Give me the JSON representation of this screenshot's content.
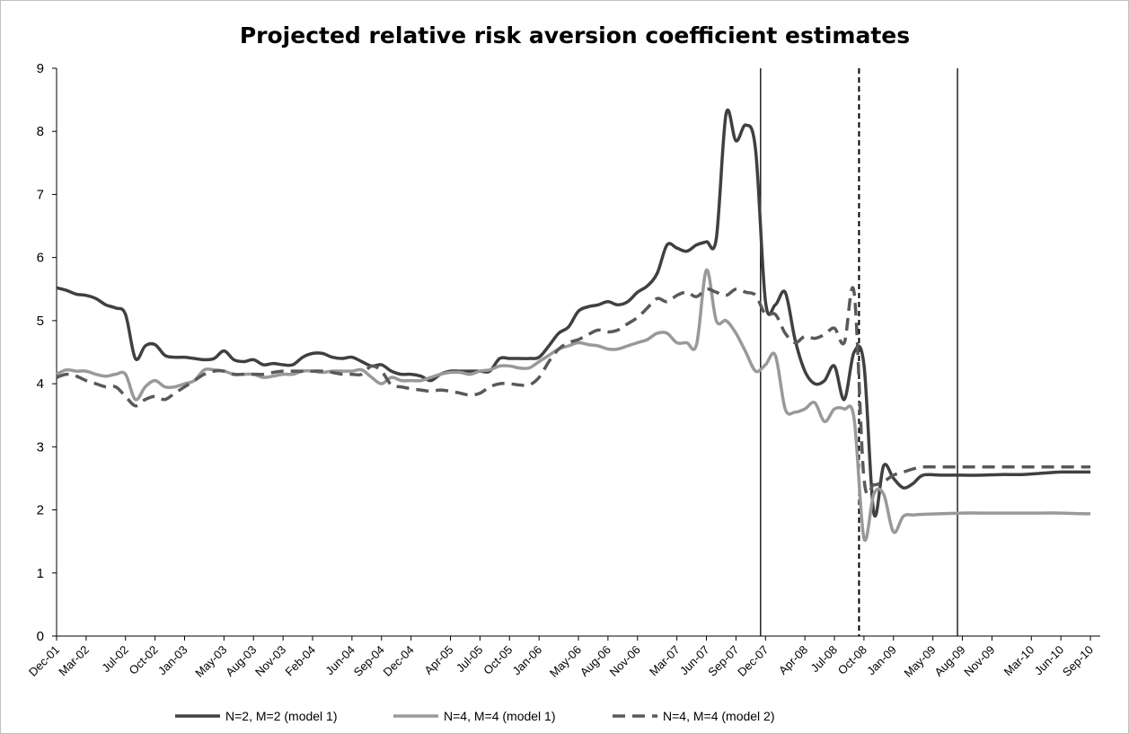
{
  "chart_data": {
    "type": "line",
    "title": "Projected relative risk aversion coefficient estimates",
    "xlabel": "",
    "ylabel": "",
    "ylim": [
      0,
      9
    ],
    "yticks": [
      0,
      1,
      2,
      3,
      4,
      5,
      6,
      7,
      8,
      9
    ],
    "x_tick_labels": [
      "Dec-01",
      "Mar-02",
      "Jul-02",
      "Oct-02",
      "Jan-03",
      "May-03",
      "Aug-03",
      "Nov-03",
      "Feb-04",
      "Jun-04",
      "Sep-04",
      "Dec-04",
      "Apr-05",
      "Jul-05",
      "Oct-05",
      "Jan-06",
      "May-06",
      "Aug-06",
      "Nov-06",
      "Mar-07",
      "Jun-07",
      "Sep-07",
      "Dec-07",
      "Apr-08",
      "Jul-08",
      "Oct-08",
      "Jan-09",
      "May-09",
      "Aug-09",
      "Nov-09",
      "Mar-10",
      "Jun-10",
      "Sep-10"
    ],
    "x_tick_positions": [
      0,
      3,
      7,
      10,
      13,
      17,
      20,
      23,
      26,
      30,
      33,
      36,
      40,
      43,
      46,
      49,
      53,
      56,
      59,
      63,
      66,
      69,
      72,
      76,
      79,
      82,
      85,
      89,
      92,
      95,
      99,
      102,
      105
    ],
    "x_range": [
      0,
      106
    ],
    "vertical_lines": [
      {
        "x": 71.5,
        "style": "solid"
      },
      {
        "x": 81.5,
        "style": "dashed"
      },
      {
        "x": 91.5,
        "style": "solid"
      }
    ],
    "grid": false,
    "legend_position": "bottom",
    "series": [
      {
        "name": "N=2, M=2 (model 1)",
        "color": "#404040",
        "dash": "solid",
        "points": [
          [
            0,
            5.52
          ],
          [
            1,
            5.48
          ],
          [
            2,
            5.42
          ],
          [
            3,
            5.4
          ],
          [
            4,
            5.35
          ],
          [
            5,
            5.25
          ],
          [
            6,
            5.2
          ],
          [
            7,
            5.1
          ],
          [
            8,
            4.4
          ],
          [
            9,
            4.6
          ],
          [
            10,
            4.62
          ],
          [
            11,
            4.45
          ],
          [
            12,
            4.42
          ],
          [
            13,
            4.42
          ],
          [
            14,
            4.4
          ],
          [
            15,
            4.38
          ],
          [
            16,
            4.4
          ],
          [
            17,
            4.52
          ],
          [
            18,
            4.38
          ],
          [
            19,
            4.35
          ],
          [
            20,
            4.38
          ],
          [
            21,
            4.3
          ],
          [
            22,
            4.32
          ],
          [
            23,
            4.3
          ],
          [
            24,
            4.3
          ],
          [
            25,
            4.42
          ],
          [
            26,
            4.48
          ],
          [
            27,
            4.48
          ],
          [
            28,
            4.42
          ],
          [
            29,
            4.4
          ],
          [
            30,
            4.42
          ],
          [
            31,
            4.35
          ],
          [
            32,
            4.28
          ],
          [
            33,
            4.3
          ],
          [
            34,
            4.2
          ],
          [
            35,
            4.15
          ],
          [
            36,
            4.15
          ],
          [
            37,
            4.12
          ],
          [
            38,
            4.05
          ],
          [
            39,
            4.15
          ],
          [
            40,
            4.2
          ],
          [
            41,
            4.2
          ],
          [
            42,
            4.2
          ],
          [
            43,
            4.2
          ],
          [
            44,
            4.2
          ],
          [
            45,
            4.4
          ],
          [
            46,
            4.4
          ],
          [
            47,
            4.4
          ],
          [
            48,
            4.4
          ],
          [
            49,
            4.42
          ],
          [
            50,
            4.6
          ],
          [
            51,
            4.8
          ],
          [
            52,
            4.9
          ],
          [
            53,
            5.15
          ],
          [
            54,
            5.22
          ],
          [
            55,
            5.25
          ],
          [
            56,
            5.3
          ],
          [
            57,
            5.25
          ],
          [
            58,
            5.3
          ],
          [
            59,
            5.45
          ],
          [
            60,
            5.55
          ],
          [
            61,
            5.75
          ],
          [
            62,
            6.2
          ],
          [
            63,
            6.15
          ],
          [
            64,
            6.1
          ],
          [
            65,
            6.2
          ],
          [
            66,
            6.25
          ],
          [
            67,
            6.3
          ],
          [
            68,
            8.28
          ],
          [
            69,
            7.85
          ],
          [
            70,
            8.1
          ],
          [
            71,
            7.7
          ],
          [
            72,
            5.3
          ],
          [
            73,
            5.25
          ],
          [
            74,
            5.45
          ],
          [
            75,
            4.7
          ],
          [
            76,
            4.2
          ],
          [
            77,
            4.0
          ],
          [
            78,
            4.05
          ],
          [
            79,
            4.28
          ],
          [
            80,
            3.75
          ],
          [
            81,
            4.5
          ],
          [
            82,
            4.3
          ],
          [
            83,
            1.95
          ],
          [
            84,
            2.7
          ],
          [
            85,
            2.5
          ],
          [
            86,
            2.35
          ],
          [
            87,
            2.42
          ],
          [
            88,
            2.55
          ],
          [
            90,
            2.55
          ],
          [
            92,
            2.55
          ],
          [
            94,
            2.55
          ],
          [
            96,
            2.56
          ],
          [
            98,
            2.56
          ],
          [
            100,
            2.58
          ],
          [
            102,
            2.6
          ],
          [
            104,
            2.6
          ],
          [
            105,
            2.6
          ]
        ]
      },
      {
        "name": "N=4, M=4 (model 1)",
        "color": "#999999",
        "dash": "solid",
        "points": [
          [
            0,
            4.15
          ],
          [
            1,
            4.22
          ],
          [
            2,
            4.2
          ],
          [
            3,
            4.2
          ],
          [
            4,
            4.15
          ],
          [
            5,
            4.12
          ],
          [
            6,
            4.15
          ],
          [
            7,
            4.15
          ],
          [
            8,
            3.75
          ],
          [
            9,
            3.95
          ],
          [
            10,
            4.05
          ],
          [
            11,
            3.95
          ],
          [
            12,
            3.95
          ],
          [
            13,
            4.0
          ],
          [
            14,
            4.05
          ],
          [
            15,
            4.22
          ],
          [
            16,
            4.22
          ],
          [
            17,
            4.2
          ],
          [
            18,
            4.15
          ],
          [
            19,
            4.15
          ],
          [
            20,
            4.15
          ],
          [
            21,
            4.1
          ],
          [
            22,
            4.12
          ],
          [
            23,
            4.15
          ],
          [
            24,
            4.15
          ],
          [
            25,
            4.2
          ],
          [
            26,
            4.2
          ],
          [
            27,
            4.18
          ],
          [
            28,
            4.2
          ],
          [
            29,
            4.2
          ],
          [
            30,
            4.2
          ],
          [
            31,
            4.22
          ],
          [
            32,
            4.1
          ],
          [
            33,
            4.0
          ],
          [
            34,
            4.1
          ],
          [
            35,
            4.05
          ],
          [
            36,
            4.05
          ],
          [
            37,
            4.05
          ],
          [
            38,
            4.1
          ],
          [
            39,
            4.15
          ],
          [
            40,
            4.18
          ],
          [
            41,
            4.18
          ],
          [
            42,
            4.15
          ],
          [
            43,
            4.2
          ],
          [
            44,
            4.22
          ],
          [
            45,
            4.28
          ],
          [
            46,
            4.28
          ],
          [
            47,
            4.25
          ],
          [
            48,
            4.25
          ],
          [
            49,
            4.35
          ],
          [
            50,
            4.45
          ],
          [
            51,
            4.55
          ],
          [
            52,
            4.6
          ],
          [
            53,
            4.65
          ],
          [
            54,
            4.62
          ],
          [
            55,
            4.6
          ],
          [
            56,
            4.55
          ],
          [
            57,
            4.55
          ],
          [
            58,
            4.6
          ],
          [
            59,
            4.65
          ],
          [
            60,
            4.7
          ],
          [
            61,
            4.8
          ],
          [
            62,
            4.8
          ],
          [
            63,
            4.65
          ],
          [
            64,
            4.65
          ],
          [
            65,
            4.62
          ],
          [
            66,
            5.8
          ],
          [
            67,
            5.0
          ],
          [
            68,
            5.0
          ],
          [
            69,
            4.8
          ],
          [
            70,
            4.5
          ],
          [
            71,
            4.2
          ],
          [
            72,
            4.3
          ],
          [
            73,
            4.45
          ],
          [
            74,
            3.6
          ],
          [
            75,
            3.55
          ],
          [
            76,
            3.6
          ],
          [
            77,
            3.7
          ],
          [
            78,
            3.4
          ],
          [
            79,
            3.6
          ],
          [
            80,
            3.6
          ],
          [
            81,
            3.45
          ],
          [
            82,
            1.55
          ],
          [
            83,
            2.25
          ],
          [
            84,
            2.25
          ],
          [
            85,
            1.65
          ],
          [
            86,
            1.9
          ],
          [
            87,
            1.92
          ],
          [
            88,
            1.93
          ],
          [
            90,
            1.94
          ],
          [
            92,
            1.95
          ],
          [
            94,
            1.95
          ],
          [
            96,
            1.95
          ],
          [
            98,
            1.95
          ],
          [
            100,
            1.95
          ],
          [
            102,
            1.95
          ],
          [
            104,
            1.94
          ],
          [
            105,
            1.94
          ]
        ]
      },
      {
        "name": "N=4, M=4 (model 2)",
        "color": "#595959",
        "dash": "dashed",
        "points": [
          [
            0,
            4.1
          ],
          [
            1,
            4.15
          ],
          [
            2,
            4.12
          ],
          [
            3,
            4.05
          ],
          [
            4,
            4.0
          ],
          [
            5,
            3.95
          ],
          [
            6,
            3.95
          ],
          [
            7,
            3.8
          ],
          [
            8,
            3.65
          ],
          [
            9,
            3.75
          ],
          [
            10,
            3.8
          ],
          [
            11,
            3.75
          ],
          [
            12,
            3.85
          ],
          [
            13,
            3.95
          ],
          [
            14,
            4.05
          ],
          [
            15,
            4.15
          ],
          [
            16,
            4.2
          ],
          [
            17,
            4.2
          ],
          [
            18,
            4.15
          ],
          [
            19,
            4.15
          ],
          [
            20,
            4.15
          ],
          [
            21,
            4.15
          ],
          [
            22,
            4.18
          ],
          [
            23,
            4.2
          ],
          [
            24,
            4.2
          ],
          [
            25,
            4.2
          ],
          [
            26,
            4.2
          ],
          [
            27,
            4.2
          ],
          [
            28,
            4.18
          ],
          [
            29,
            4.15
          ],
          [
            30,
            4.15
          ],
          [
            31,
            4.15
          ],
          [
            32,
            4.28
          ],
          [
            33,
            4.2
          ],
          [
            34,
            3.98
          ],
          [
            35,
            3.95
          ],
          [
            36,
            3.92
          ],
          [
            37,
            3.9
          ],
          [
            38,
            3.88
          ],
          [
            39,
            3.9
          ],
          [
            40,
            3.88
          ],
          [
            41,
            3.85
          ],
          [
            42,
            3.82
          ],
          [
            43,
            3.85
          ],
          [
            44,
            3.95
          ],
          [
            45,
            4.0
          ],
          [
            46,
            4.0
          ],
          [
            47,
            3.98
          ],
          [
            48,
            3.98
          ],
          [
            49,
            4.1
          ],
          [
            50,
            4.35
          ],
          [
            51,
            4.55
          ],
          [
            52,
            4.65
          ],
          [
            53,
            4.7
          ],
          [
            54,
            4.78
          ],
          [
            55,
            4.85
          ],
          [
            56,
            4.82
          ],
          [
            57,
            4.85
          ],
          [
            58,
            4.95
          ],
          [
            59,
            5.05
          ],
          [
            60,
            5.2
          ],
          [
            61,
            5.35
          ],
          [
            62,
            5.3
          ],
          [
            63,
            5.4
          ],
          [
            64,
            5.45
          ],
          [
            65,
            5.38
          ],
          [
            66,
            5.5
          ],
          [
            67,
            5.45
          ],
          [
            68,
            5.4
          ],
          [
            69,
            5.5
          ],
          [
            70,
            5.45
          ],
          [
            71,
            5.4
          ],
          [
            72,
            5.1
          ],
          [
            73,
            5.1
          ],
          [
            74,
            4.8
          ],
          [
            75,
            4.65
          ],
          [
            76,
            4.75
          ],
          [
            77,
            4.72
          ],
          [
            78,
            4.78
          ],
          [
            79,
            4.88
          ],
          [
            80,
            4.65
          ],
          [
            81,
            5.45
          ],
          [
            82,
            2.5
          ],
          [
            83,
            2.4
          ],
          [
            84,
            2.45
          ],
          [
            85,
            2.55
          ],
          [
            86,
            2.6
          ],
          [
            87,
            2.65
          ],
          [
            88,
            2.68
          ],
          [
            90,
            2.68
          ],
          [
            92,
            2.68
          ],
          [
            94,
            2.68
          ],
          [
            96,
            2.68
          ],
          [
            98,
            2.68
          ],
          [
            100,
            2.68
          ],
          [
            102,
            2.68
          ],
          [
            104,
            2.68
          ],
          [
            105,
            2.68
          ]
        ]
      }
    ]
  }
}
